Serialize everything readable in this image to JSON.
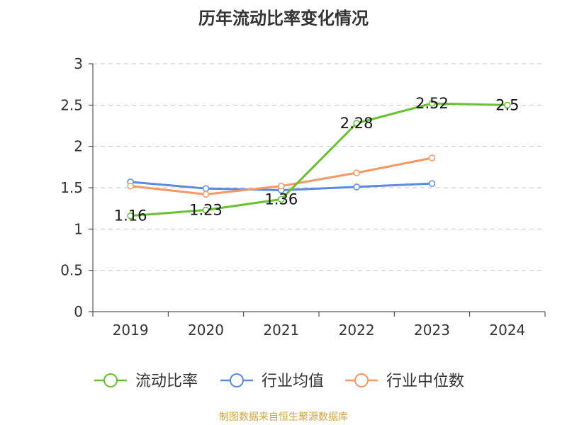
{
  "title": "历年流动比率变化情况",
  "source": "制图数据来自恒生聚源数据库",
  "colors": {
    "current_ratio": "#66c22e",
    "industry_mean": "#5b8ae0",
    "industry_median": "#f79862",
    "axis": "#333333",
    "grid": "#c8c8c8"
  },
  "chart_data": {
    "type": "line",
    "categories": [
      "2019",
      "2020",
      "2021",
      "2022",
      "2023",
      "2024"
    ],
    "ylim": [
      0,
      3
    ],
    "yticks": [
      "0",
      "0.5",
      "1",
      "1.5",
      "2",
      "2.5",
      "3"
    ],
    "grid": true,
    "legend_position": "bottom",
    "series": [
      {
        "key": "current_ratio",
        "name": "流动比率",
        "values": [
          1.16,
          1.23,
          1.36,
          2.28,
          2.52,
          2.5
        ],
        "labels": [
          "1.16",
          "1.23",
          "1.36",
          "2.28",
          "2.52",
          "2.5"
        ]
      },
      {
        "key": "industry_mean",
        "name": "行业均值",
        "values": [
          1.57,
          1.49,
          1.47,
          1.51,
          1.55,
          null
        ]
      },
      {
        "key": "industry_median",
        "name": "行业中位数",
        "values": [
          1.52,
          1.42,
          1.52,
          1.68,
          1.86,
          null
        ]
      }
    ]
  }
}
